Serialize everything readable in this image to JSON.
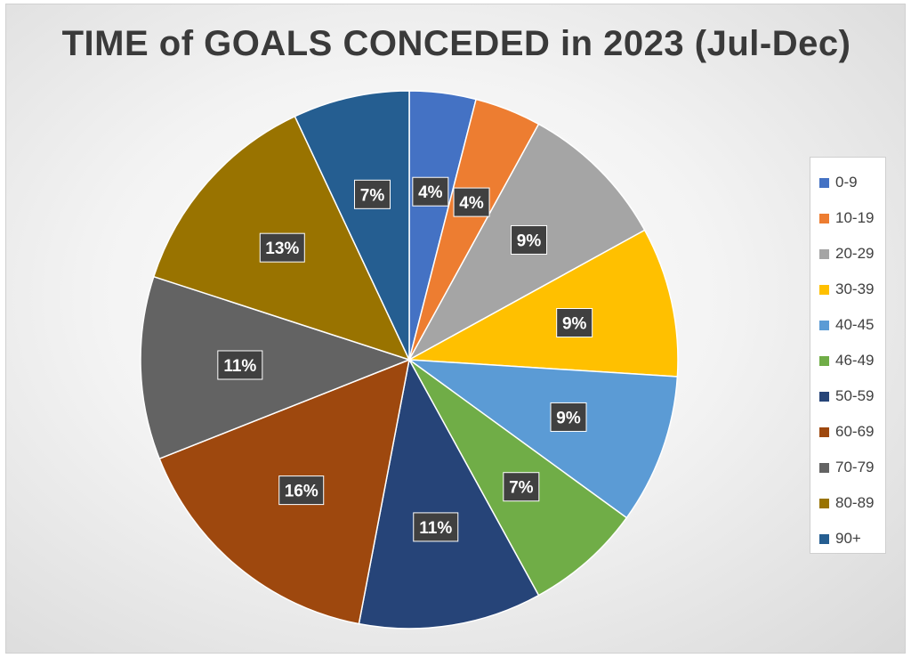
{
  "chart_data": {
    "type": "pie",
    "title": "TIME of GOALS CONCEDED in 2023 (Jul-Dec)",
    "legend_position": "right",
    "slices": [
      {
        "label": "0-9",
        "value": 4,
        "display": "4%",
        "color": "#4472C4"
      },
      {
        "label": "10-19",
        "value": 4,
        "display": "4%",
        "color": "#ED7D31"
      },
      {
        "label": "20-29",
        "value": 9,
        "display": "9%",
        "color": "#A5A5A5"
      },
      {
        "label": "30-39",
        "value": 9,
        "display": "9%",
        "color": "#FFC000"
      },
      {
        "label": "40-45",
        "value": 9,
        "display": "9%",
        "color": "#5B9BD5"
      },
      {
        "label": "46-49",
        "value": 7,
        "display": "7%",
        "color": "#70AD47"
      },
      {
        "label": "50-59",
        "value": 11,
        "display": "11%",
        "color": "#264478"
      },
      {
        "label": "60-69",
        "value": 16,
        "display": "16%",
        "color": "#9E480E"
      },
      {
        "label": "70-79",
        "value": 11,
        "display": "11%",
        "color": "#636363"
      },
      {
        "label": "80-89",
        "value": 13,
        "display": "13%",
        "color": "#997300"
      },
      {
        "label": "90+",
        "value": 7,
        "display": "7%",
        "color": "#255E91"
      }
    ]
  }
}
